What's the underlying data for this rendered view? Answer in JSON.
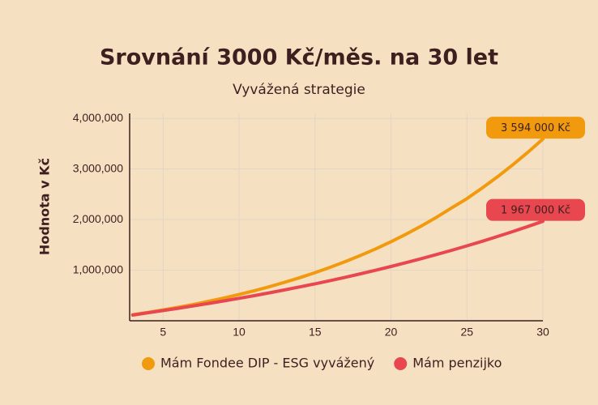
{
  "chart_data": {
    "type": "line",
    "title": "Srovnání 3000 Kč/měs. na 30 let",
    "subtitle": "Vyvážená strategie",
    "y_label": "Hodnota v Kč",
    "x": [
      3,
      4,
      5,
      6,
      7,
      8,
      9,
      10,
      11,
      12,
      13,
      14,
      15,
      16,
      17,
      18,
      19,
      20,
      21,
      22,
      23,
      24,
      25,
      26,
      27,
      28,
      29,
      30
    ],
    "series": [
      {
        "name": "Mám Fondee DIP - ESG vyvážený",
        "color": "#f29a0e",
        "values": [
          119800,
          164400,
          214900,
          267500,
          324000,
          384600,
          449600,
          519400,
          594100,
          674200,
          760100,
          852200,
          951000,
          1057000,
          1170600,
          1292400,
          1422900,
          1563000,
          1713100,
          1874200,
          2047000,
          2232200,
          2415000,
          2625000,
          2845000,
          3080000,
          3330000,
          3594000
        ],
        "value_labels": [
          null,
          null,
          null,
          null,
          null,
          null,
          null,
          null,
          null,
          null,
          null,
          null,
          null,
          null,
          null,
          null,
          null,
          null,
          null,
          null,
          null,
          null,
          null,
          null,
          null,
          null,
          null,
          "3 594 000 Kč"
        ]
      },
      {
        "name": "Mám penzijko",
        "color": "#e8474f",
        "values": [
          111400,
          159100,
          202400,
          247400,
          293900,
          342100,
          392000,
          443700,
          497200,
          552600,
          609900,
          669400,
          730900,
          794800,
          860700,
          929100,
          999800,
          1073300,
          1149400,
          1228200,
          1309800,
          1393700,
          1481000,
          1571300,
          1665000,
          1761900,
          1862300,
          1967000
        ],
        "value_labels": [
          null,
          null,
          null,
          null,
          null,
          null,
          null,
          null,
          null,
          null,
          null,
          null,
          null,
          null,
          null,
          null,
          null,
          null,
          null,
          null,
          null,
          null,
          null,
          null,
          null,
          null,
          null,
          "1 967 000 Kč"
        ]
      }
    ],
    "xlim": [
      2.8,
      30
    ],
    "xticks": [
      5,
      10,
      15,
      20,
      25,
      30
    ],
    "ylim": [
      0,
      4100000
    ],
    "yticks": [
      {
        "value": 1000000,
        "label": "1,000,000"
      },
      {
        "value": 2000000,
        "label": "2,000,000"
      },
      {
        "value": 3000000,
        "label": "3,000,000"
      },
      {
        "value": 4000000,
        "label": "4,000,000"
      }
    ],
    "grid": true,
    "legend": "bottom"
  }
}
